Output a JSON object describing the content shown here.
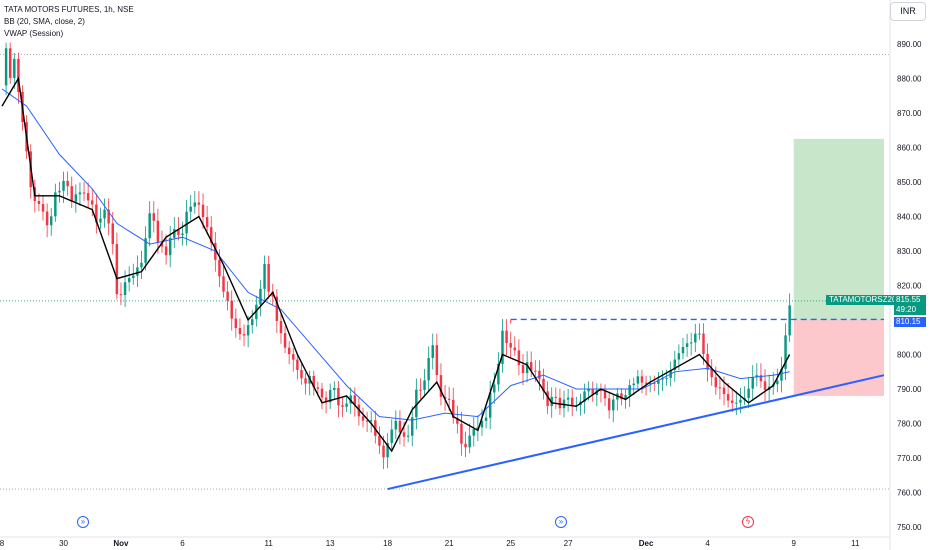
{
  "legend": {
    "symbol_line": "TATA MOTORS FUTURES, 1h, NSE",
    "bb_line": "BB (20, SMA, close, 2)",
    "vwap_line": "VWAP (Session)"
  },
  "currency_button": "INR",
  "price_tags": {
    "symbol": "TATAMOTORSZ2024",
    "last_price": "815.55",
    "countdown": "49:20",
    "level": "810.15"
  },
  "colors": {
    "up": "#089981",
    "down": "#f23645",
    "bb_basis": "#2962ff",
    "vwap": "#000000",
    "trendline": "#2962ff",
    "target_zone": "#c8e6c9",
    "stop_zone": "#fcc8cc"
  },
  "icons": [
    "forward-event-icon",
    "forward-event-icon",
    "lightning-event-icon"
  ],
  "chart_data": {
    "type": "candlestick",
    "title": "TATA MOTORS FUTURES, 1h, NSE",
    "ylim": [
      750,
      892
    ],
    "y_ticks": [
      750,
      760,
      770,
      780,
      790,
      800,
      810,
      820,
      830,
      840,
      850,
      860,
      870,
      880,
      890
    ],
    "x_tick_labels": [
      "8",
      "30",
      "Nov",
      "6",
      "11",
      "13",
      "18",
      "21",
      "25",
      "27",
      "Dec",
      "4",
      "9",
      "11"
    ],
    "close_path": [
      {
        "x": 0,
        "y": 878
      },
      {
        "x": 1,
        "y": 886
      },
      {
        "x": 2,
        "y": 880
      },
      {
        "x": 3,
        "y": 884
      },
      {
        "x": 5,
        "y": 866
      },
      {
        "x": 7,
        "y": 848
      },
      {
        "x": 9,
        "y": 845
      },
      {
        "x": 11,
        "y": 838
      },
      {
        "x": 13,
        "y": 847
      },
      {
        "x": 15,
        "y": 849
      },
      {
        "x": 17,
        "y": 843
      },
      {
        "x": 19,
        "y": 846
      },
      {
        "x": 21,
        "y": 843
      },
      {
        "x": 23,
        "y": 840
      },
      {
        "x": 25,
        "y": 844
      },
      {
        "x": 27,
        "y": 835
      },
      {
        "x": 28,
        "y": 820
      },
      {
        "x": 30,
        "y": 818
      },
      {
        "x": 32,
        "y": 822
      },
      {
        "x": 34,
        "y": 826
      },
      {
        "x": 36,
        "y": 838
      },
      {
        "x": 38,
        "y": 834
      },
      {
        "x": 40,
        "y": 830
      },
      {
        "x": 42,
        "y": 838
      },
      {
        "x": 44,
        "y": 836
      },
      {
        "x": 46,
        "y": 842
      },
      {
        "x": 48,
        "y": 843
      },
      {
        "x": 50,
        "y": 836
      },
      {
        "x": 52,
        "y": 828
      },
      {
        "x": 54,
        "y": 820
      },
      {
        "x": 56,
        "y": 812
      },
      {
        "x": 58,
        "y": 808
      },
      {
        "x": 60,
        "y": 808
      },
      {
        "x": 62,
        "y": 812
      },
      {
        "x": 64,
        "y": 826
      },
      {
        "x": 65,
        "y": 818
      },
      {
        "x": 67,
        "y": 812
      },
      {
        "x": 69,
        "y": 804
      },
      {
        "x": 71,
        "y": 800
      },
      {
        "x": 73,
        "y": 796
      },
      {
        "x": 75,
        "y": 792
      },
      {
        "x": 77,
        "y": 788
      },
      {
        "x": 79,
        "y": 786
      },
      {
        "x": 81,
        "y": 789
      },
      {
        "x": 83,
        "y": 787
      },
      {
        "x": 85,
        "y": 790
      },
      {
        "x": 87,
        "y": 784
      },
      {
        "x": 89,
        "y": 781
      },
      {
        "x": 91,
        "y": 776
      },
      {
        "x": 93,
        "y": 768
      },
      {
        "x": 95,
        "y": 776
      },
      {
        "x": 97,
        "y": 780
      },
      {
        "x": 99,
        "y": 778
      },
      {
        "x": 101,
        "y": 790
      },
      {
        "x": 103,
        "y": 795
      },
      {
        "x": 105,
        "y": 800
      },
      {
        "x": 107,
        "y": 786
      },
      {
        "x": 109,
        "y": 784
      },
      {
        "x": 111,
        "y": 778
      },
      {
        "x": 113,
        "y": 776
      },
      {
        "x": 115,
        "y": 780
      },
      {
        "x": 117,
        "y": 781
      },
      {
        "x": 119,
        "y": 786
      },
      {
        "x": 121,
        "y": 795
      },
      {
        "x": 122,
        "y": 804
      },
      {
        "x": 124,
        "y": 802
      },
      {
        "x": 126,
        "y": 796
      },
      {
        "x": 128,
        "y": 798
      },
      {
        "x": 130,
        "y": 797
      },
      {
        "x": 132,
        "y": 790
      },
      {
        "x": 134,
        "y": 786
      },
      {
        "x": 136,
        "y": 784
      },
      {
        "x": 138,
        "y": 785
      },
      {
        "x": 140,
        "y": 784
      },
      {
        "x": 142,
        "y": 790
      },
      {
        "x": 144,
        "y": 791
      },
      {
        "x": 146,
        "y": 790
      },
      {
        "x": 148,
        "y": 785
      },
      {
        "x": 150,
        "y": 786
      },
      {
        "x": 152,
        "y": 788
      },
      {
        "x": 154,
        "y": 790
      },
      {
        "x": 156,
        "y": 792
      },
      {
        "x": 158,
        "y": 794
      },
      {
        "x": 160,
        "y": 793
      },
      {
        "x": 162,
        "y": 796
      },
      {
        "x": 164,
        "y": 798
      },
      {
        "x": 166,
        "y": 800
      },
      {
        "x": 168,
        "y": 802
      },
      {
        "x": 170,
        "y": 806
      },
      {
        "x": 172,
        "y": 796
      },
      {
        "x": 174,
        "y": 792
      },
      {
        "x": 176,
        "y": 791
      },
      {
        "x": 178,
        "y": 786
      },
      {
        "x": 180,
        "y": 784
      },
      {
        "x": 182,
        "y": 788
      },
      {
        "x": 184,
        "y": 794
      },
      {
        "x": 186,
        "y": 790
      },
      {
        "x": 188,
        "y": 793
      },
      {
        "x": 190,
        "y": 797
      },
      {
        "x": 191,
        "y": 808
      },
      {
        "x": 192,
        "y": 815.55
      }
    ],
    "bollinger_basis": [
      {
        "x": 0,
        "y": 877
      },
      {
        "x": 6,
        "y": 872
      },
      {
        "x": 14,
        "y": 858
      },
      {
        "x": 22,
        "y": 848
      },
      {
        "x": 28,
        "y": 838
      },
      {
        "x": 36,
        "y": 832
      },
      {
        "x": 44,
        "y": 834
      },
      {
        "x": 52,
        "y": 830
      },
      {
        "x": 60,
        "y": 818
      },
      {
        "x": 68,
        "y": 813
      },
      {
        "x": 76,
        "y": 802
      },
      {
        "x": 84,
        "y": 791
      },
      {
        "x": 92,
        "y": 782
      },
      {
        "x": 100,
        "y": 781
      },
      {
        "x": 108,
        "y": 783
      },
      {
        "x": 116,
        "y": 782
      },
      {
        "x": 124,
        "y": 791
      },
      {
        "x": 132,
        "y": 794
      },
      {
        "x": 140,
        "y": 790
      },
      {
        "x": 148,
        "y": 790
      },
      {
        "x": 156,
        "y": 790
      },
      {
        "x": 164,
        "y": 795
      },
      {
        "x": 172,
        "y": 796
      },
      {
        "x": 180,
        "y": 793
      },
      {
        "x": 188,
        "y": 794
      },
      {
        "x": 192,
        "y": 795
      }
    ],
    "vwap": [
      {
        "x": 0,
        "y": 872
      },
      {
        "x": 4,
        "y": 880
      },
      {
        "x": 8,
        "y": 846
      },
      {
        "x": 14,
        "y": 846
      },
      {
        "x": 22,
        "y": 842
      },
      {
        "x": 28,
        "y": 822
      },
      {
        "x": 34,
        "y": 824
      },
      {
        "x": 40,
        "y": 834
      },
      {
        "x": 48,
        "y": 840
      },
      {
        "x": 54,
        "y": 826
      },
      {
        "x": 60,
        "y": 810
      },
      {
        "x": 66,
        "y": 818
      },
      {
        "x": 72,
        "y": 800
      },
      {
        "x": 78,
        "y": 786
      },
      {
        "x": 84,
        "y": 788
      },
      {
        "x": 90,
        "y": 780
      },
      {
        "x": 95,
        "y": 772
      },
      {
        "x": 100,
        "y": 784
      },
      {
        "x": 106,
        "y": 792
      },
      {
        "x": 110,
        "y": 782
      },
      {
        "x": 116,
        "y": 778
      },
      {
        "x": 122,
        "y": 800
      },
      {
        "x": 128,
        "y": 797
      },
      {
        "x": 134,
        "y": 786
      },
      {
        "x": 140,
        "y": 785
      },
      {
        "x": 146,
        "y": 790
      },
      {
        "x": 152,
        "y": 787
      },
      {
        "x": 158,
        "y": 792
      },
      {
        "x": 164,
        "y": 796
      },
      {
        "x": 170,
        "y": 800
      },
      {
        "x": 176,
        "y": 792
      },
      {
        "x": 182,
        "y": 786
      },
      {
        "x": 188,
        "y": 791
      },
      {
        "x": 192,
        "y": 800
      }
    ],
    "horizontal_levels": [
      887,
      815.55,
      761
    ],
    "resistance_level": {
      "value": 810.15,
      "x_start": 124,
      "x_end": 215
    },
    "trendline": [
      {
        "x": 94,
        "y": 761
      },
      {
        "x": 215,
        "y": 794
      }
    ],
    "position": {
      "entry": 810.15,
      "target": 862.5,
      "stop": 788,
      "x_start": 193,
      "x_end": 215
    },
    "events": [
      {
        "x": 20,
        "icon": "forward"
      },
      {
        "x": 141,
        "icon": "forward"
      },
      {
        "x": 190,
        "icon": "lightning"
      }
    ]
  }
}
